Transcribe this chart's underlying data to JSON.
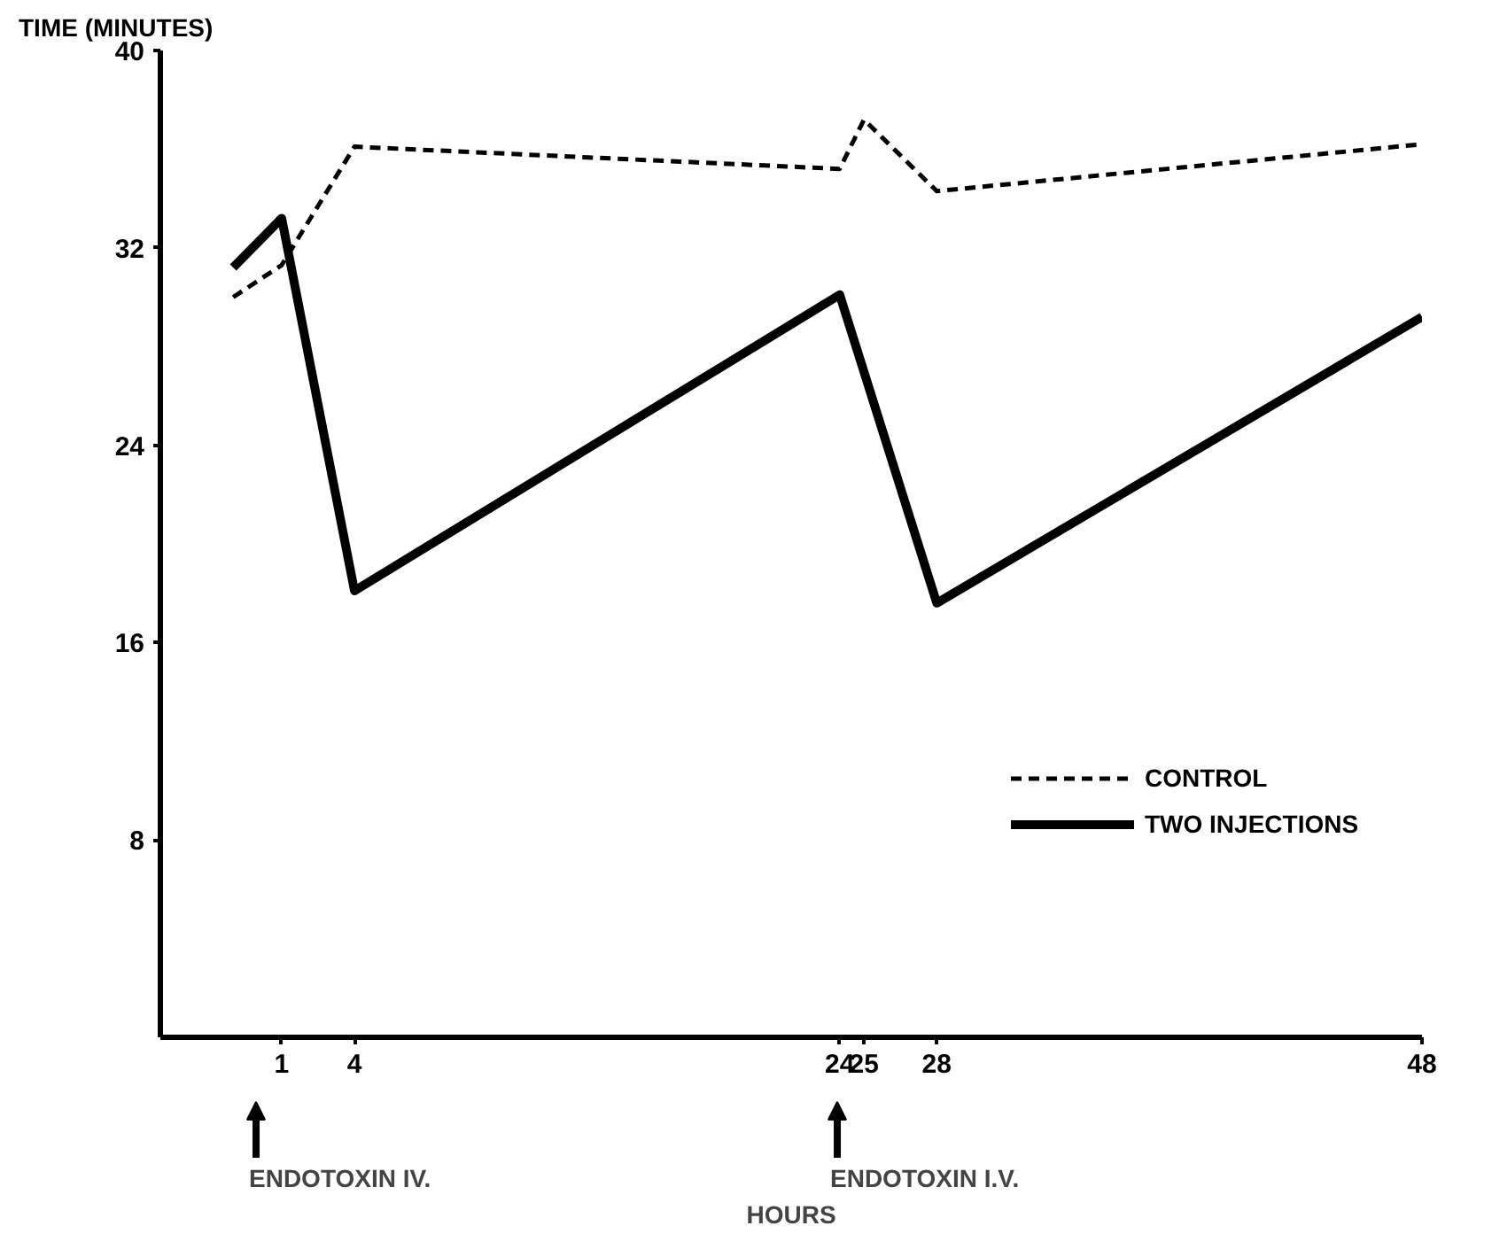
{
  "chart_data": {
    "type": "line",
    "xlabel": "HOURS",
    "ylabel": "TIME (MINUTES)",
    "xlim": [
      -4,
      48
    ],
    "xticks": [
      1,
      4,
      24,
      25,
      28,
      48
    ],
    "ylim": [
      0,
      40
    ],
    "yticks": [
      8,
      16,
      24,
      32,
      40
    ],
    "grid": false,
    "legend": "right",
    "marker": "none",
    "series": [
      {
        "name": "CONTROL",
        "color": "#000000",
        "line_style": "dashed",
        "x": [
          -1,
          1,
          4,
          24,
          25,
          28,
          48
        ],
        "values": [
          30.0,
          31.3,
          36.1,
          35.2,
          37.2,
          34.3,
          36.2
        ]
      },
      {
        "name": "TWO INJECTIONS",
        "color": "#000000",
        "line_style": "solid",
        "x": [
          -1,
          1,
          4,
          24,
          28,
          48
        ],
        "values": [
          31.2,
          33.2,
          18.1,
          30.1,
          17.6,
          29.2
        ]
      }
    ],
    "annotations": [
      "ENDOTOXIN IV.",
      "ENDOTOXIN I.V."
    ]
  }
}
